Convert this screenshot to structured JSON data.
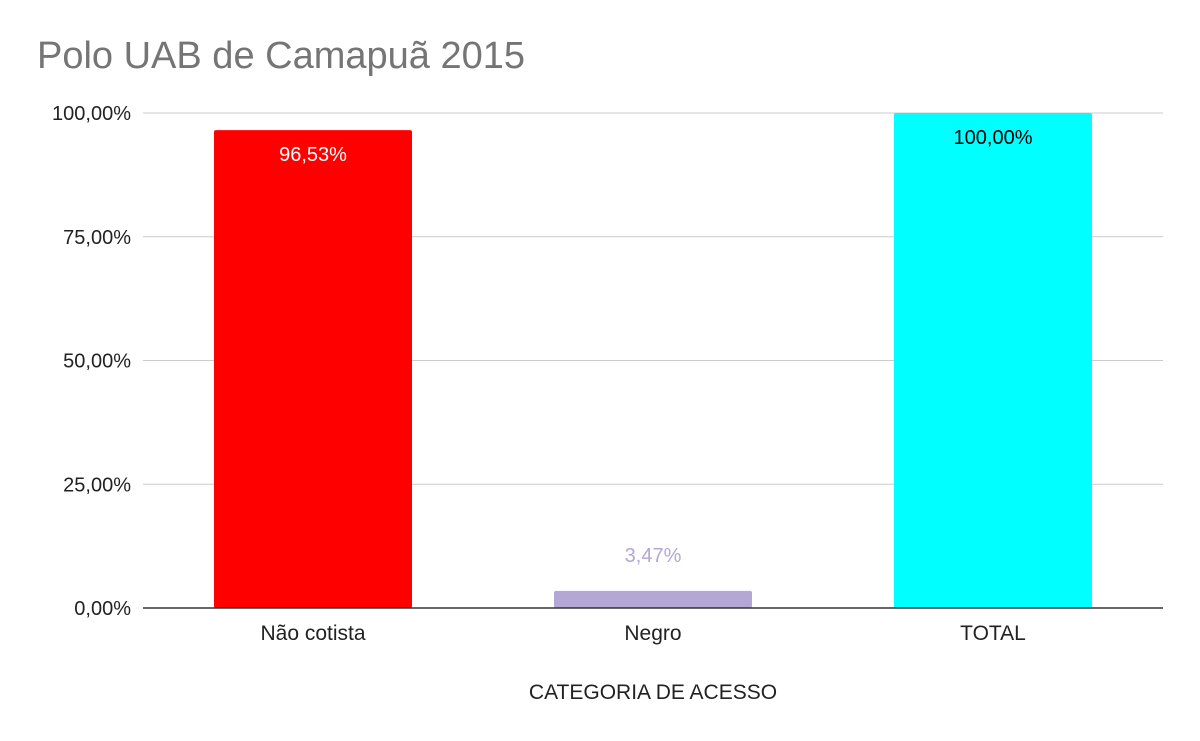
{
  "chart_data": {
    "type": "bar",
    "title": "Polo UAB de Camapuã 2015",
    "xlabel": "CATEGORIA DE ACESSO",
    "ylabel": "",
    "categories": [
      "Não cotista",
      "Negro",
      "TOTAL"
    ],
    "values": [
      96.53,
      3.47,
      100.0
    ],
    "data_labels": [
      "96,53%",
      "3,47%",
      "100,00%"
    ],
    "bar_colors": [
      "#ff0000",
      "#b4a7d6",
      "#00ffff"
    ],
    "label_colors": [
      "#ffffff",
      "#b4a7d6",
      "#000000"
    ],
    "label_positions": [
      "inside",
      "outside",
      "inside"
    ],
    "ylim": [
      0,
      100
    ],
    "yticks": [
      0,
      25,
      50,
      75,
      100
    ],
    "ytick_labels": [
      "0,00%",
      "25,00%",
      "50,00%",
      "75,00%",
      "100,00%"
    ],
    "grid": true,
    "legend": "none"
  }
}
